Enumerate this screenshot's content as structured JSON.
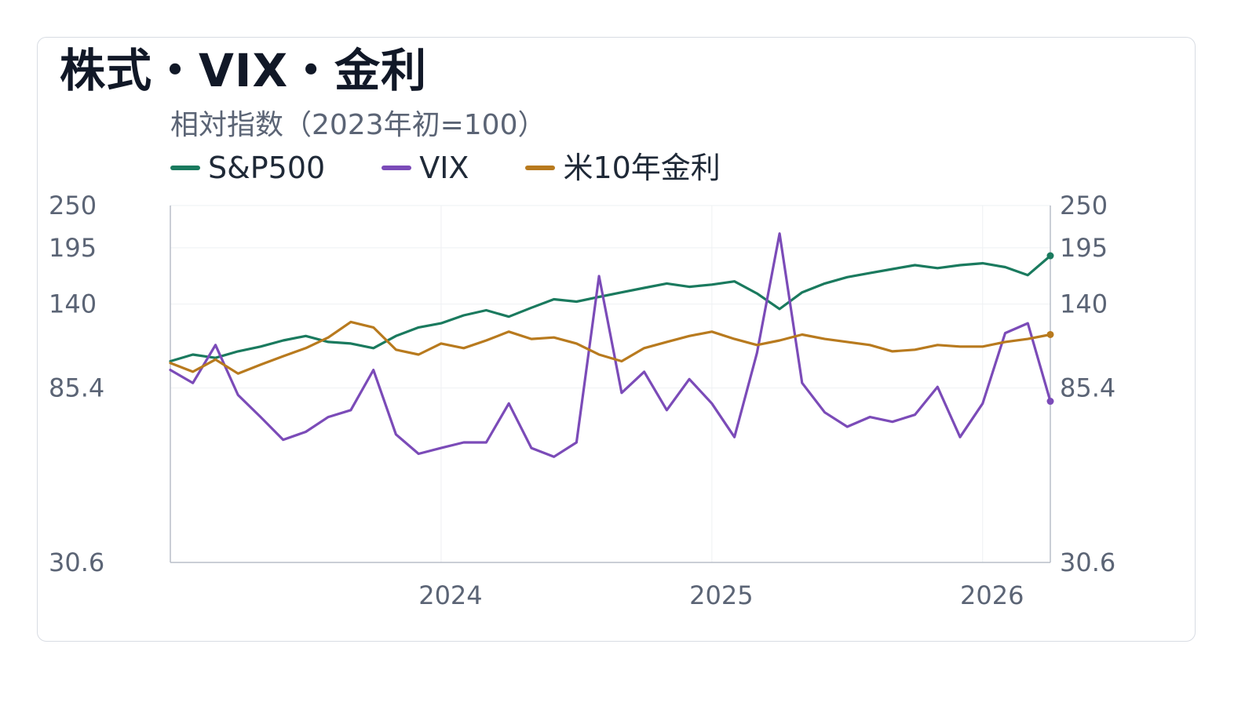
{
  "chart_data": {
    "type": "line",
    "title": "株式・VIX・金利",
    "subtitle": "相対指数（2023年初=100）",
    "y_scale": "log",
    "ylim": [
      30.6,
      250
    ],
    "y_ticks": [
      "250",
      "195",
      "140",
      "85.4",
      "30.6"
    ],
    "x_range": [
      "2023-01",
      "2026-04"
    ],
    "x_ticks": [
      "2024",
      "2025",
      "2026"
    ],
    "legend_position": "top-left",
    "grid": true,
    "series": [
      {
        "name": "S&P500",
        "color": "#1a7a5e",
        "x": [
          "2023-01",
          "2023-02",
          "2023-03",
          "2023-04",
          "2023-05",
          "2023-06",
          "2023-07",
          "2023-08",
          "2023-09",
          "2023-10",
          "2023-11",
          "2023-12",
          "2024-01",
          "2024-02",
          "2024-03",
          "2024-04",
          "2024-05",
          "2024-06",
          "2024-07",
          "2024-08",
          "2024-09",
          "2024-10",
          "2024-11",
          "2024-12",
          "2025-01",
          "2025-02",
          "2025-03",
          "2025-04",
          "2025-05",
          "2025-06",
          "2025-07",
          "2025-08",
          "2025-09",
          "2025-10",
          "2025-11",
          "2025-12",
          "2026-01",
          "2026-02",
          "2026-03",
          "2026-04"
        ],
        "values": [
          100,
          104,
          102,
          106,
          109,
          113,
          116,
          112,
          111,
          108,
          116,
          122,
          125,
          131,
          135,
          130,
          137,
          144,
          142,
          146,
          150,
          154,
          158,
          155,
          157,
          160,
          149,
          136,
          150,
          158,
          164,
          168,
          172,
          176,
          173,
          176,
          178,
          174,
          166,
          186
        ]
      },
      {
        "name": "VIX",
        "color": "#7b4bb8",
        "x": [
          "2023-01",
          "2023-02",
          "2023-03",
          "2023-04",
          "2023-05",
          "2023-06",
          "2023-07",
          "2023-08",
          "2023-09",
          "2023-10",
          "2023-11",
          "2023-12",
          "2024-01",
          "2024-02",
          "2024-03",
          "2024-04",
          "2024-05",
          "2024-06",
          "2024-07",
          "2024-08",
          "2024-09",
          "2024-10",
          "2024-11",
          "2024-12",
          "2025-01",
          "2025-02",
          "2025-03",
          "2025-04",
          "2025-05",
          "2025-06",
          "2025-07",
          "2025-08",
          "2025-09",
          "2025-10",
          "2025-11",
          "2025-12",
          "2026-01",
          "2026-02",
          "2026-03",
          "2026-04"
        ],
        "values": [
          95,
          88,
          110,
          82,
          72,
          63,
          66,
          72,
          75,
          95,
          65,
          58,
          60,
          62,
          62,
          78,
          60,
          57,
          62,
          165,
          83,
          94,
          75,
          90,
          78,
          64,
          105,
          212,
          88,
          74,
          68,
          72,
          70,
          73,
          86,
          64,
          78,
          118,
          125,
          79
        ]
      },
      {
        "name": "米10年金利",
        "color": "#b87a1e",
        "x": [
          "2023-01",
          "2023-02",
          "2023-03",
          "2023-04",
          "2023-05",
          "2023-06",
          "2023-07",
          "2023-08",
          "2023-09",
          "2023-10",
          "2023-11",
          "2023-12",
          "2024-01",
          "2024-02",
          "2024-03",
          "2024-04",
          "2024-05",
          "2024-06",
          "2024-07",
          "2024-08",
          "2024-09",
          "2024-10",
          "2024-11",
          "2024-12",
          "2025-01",
          "2025-02",
          "2025-03",
          "2025-04",
          "2025-05",
          "2025-06",
          "2025-07",
          "2025-08",
          "2025-09",
          "2025-10",
          "2025-11",
          "2025-12",
          "2026-01",
          "2026-02",
          "2026-03",
          "2026-04"
        ],
        "values": [
          99,
          94,
          101,
          93,
          98,
          103,
          108,
          115,
          126,
          122,
          107,
          104,
          111,
          108,
          113,
          119,
          114,
          115,
          111,
          104,
          100,
          108,
          112,
          116,
          119,
          114,
          110,
          113,
          117,
          114,
          112,
          110,
          106,
          107,
          110,
          109,
          109,
          112,
          114,
          117
        ]
      }
    ]
  }
}
